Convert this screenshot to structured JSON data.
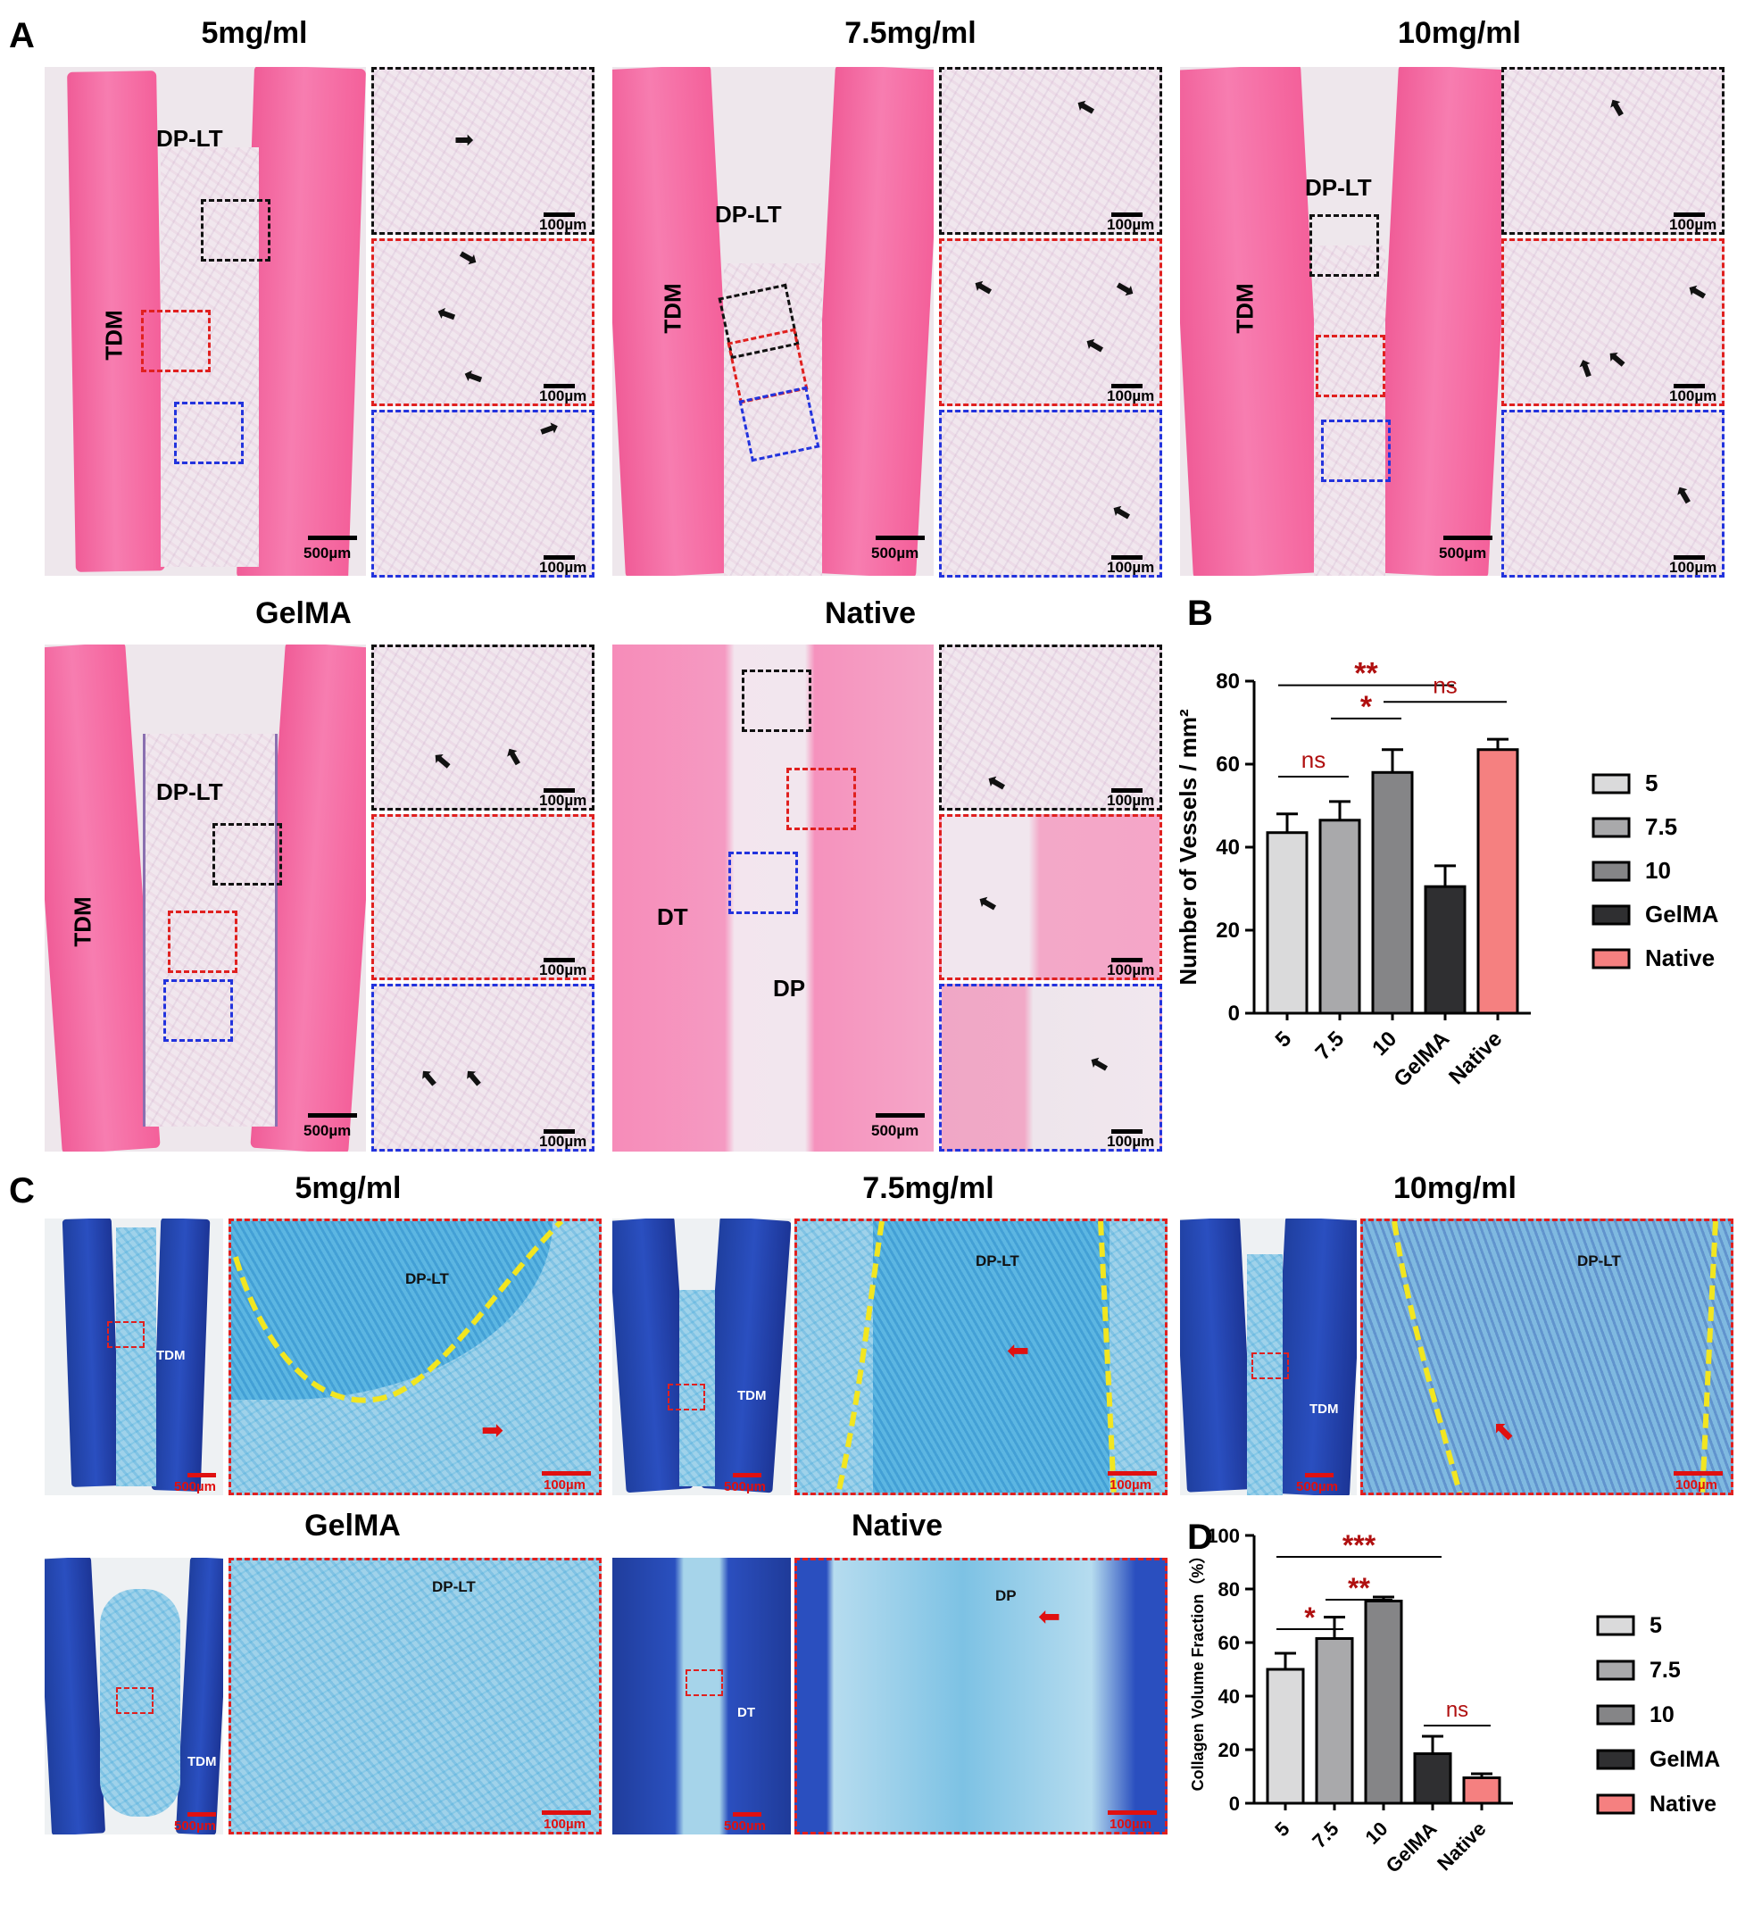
{
  "panel_a": {
    "letter": "A",
    "groups": [
      {
        "title": "5mg/ml",
        "main_labels": [
          "DP-LT",
          "TDM"
        ],
        "scale_main": "500µm",
        "scale_inset": "100µm"
      },
      {
        "title": "7.5mg/ml",
        "main_labels": [
          "DP-LT",
          "TDM"
        ],
        "scale_main": "500µm",
        "scale_inset": "100µm"
      },
      {
        "title": "10mg/ml",
        "main_labels": [
          "DP-LT",
          "TDM"
        ],
        "scale_main": "500µm",
        "scale_inset": "100µm"
      },
      {
        "title": "GelMA",
        "main_labels": [
          "DP-LT",
          "TDM"
        ],
        "scale_main": "500µm",
        "scale_inset": "100µm"
      },
      {
        "title": "Native",
        "main_labels": [
          "DT",
          "DP"
        ],
        "scale_main": "500µm",
        "scale_inset": "100µm"
      }
    ]
  },
  "panel_c": {
    "letter": "C",
    "groups": [
      {
        "title": "5mg/ml",
        "main_label": "TDM",
        "inset_label": "DP-LT",
        "scale_main": "500µm",
        "scale_inset": "100µm"
      },
      {
        "title": "7.5mg/ml",
        "main_label": "TDM",
        "inset_label": "DP-LT",
        "scale_main": "500µm",
        "scale_inset": "100µm"
      },
      {
        "title": "10mg/ml",
        "main_label": "TDM",
        "inset_label": "DP-LT",
        "scale_main": "500µm",
        "scale_inset": "100µm"
      },
      {
        "title": "GelMA",
        "main_label": "TDM",
        "inset_label": "DP-LT",
        "scale_main": "500µm",
        "scale_inset": "100µm"
      },
      {
        "title": "Native",
        "main_label": "DT",
        "inset_label": "DP",
        "scale_main": "500µm",
        "scale_inset": "100µm"
      }
    ]
  },
  "colors": {
    "bar_5": "#dadadb",
    "bar_7_5": "#a9a9ab",
    "bar_10": "#858587",
    "bar_gelma": "#2f2f31",
    "bar_native": "#f58080",
    "significance": "#b01010",
    "box_black": "#111111",
    "box_red": "#e0201f",
    "box_blue": "#2233dd"
  },
  "chart_data": [
    {
      "panel": "B",
      "type": "bar",
      "categories": [
        "5",
        "7.5",
        "10",
        "GelMA",
        "Native"
      ],
      "values": [
        43.5,
        46.5,
        58,
        30.5,
        63.5
      ],
      "errors": [
        4.5,
        4.5,
        5.5,
        5,
        2.5
      ],
      "ylabel": "Number of Vessels / mm²",
      "ylim": [
        0,
        80
      ],
      "yticks": [
        "0",
        "20",
        "40",
        "60",
        "80"
      ],
      "legend": [
        "5",
        "7.5",
        "10",
        "GelMA",
        "Native"
      ],
      "legend_position": "right",
      "significance": [
        {
          "label": "**",
          "from": "5",
          "to": "GelMA"
        },
        {
          "label": "ns",
          "from": "5",
          "to": "7.5"
        },
        {
          "label": "*",
          "from": "7.5",
          "to": "10"
        },
        {
          "label": "ns",
          "from": "10",
          "to": "Native"
        }
      ]
    },
    {
      "panel": "D",
      "type": "bar",
      "categories": [
        "5",
        "7.5",
        "10",
        "GelMA",
        "Native"
      ],
      "values": [
        50,
        61.5,
        75.5,
        18.5,
        9.5
      ],
      "errors": [
        6,
        8,
        1.5,
        6.5,
        1.5
      ],
      "ylabel": "Collagen Volume Fraction（%）",
      "ylim": [
        0,
        100
      ],
      "yticks": [
        "0",
        "20",
        "40",
        "60",
        "80",
        "100"
      ],
      "legend": [
        "5",
        "7.5",
        "10",
        "GelMA",
        "Native"
      ],
      "legend_position": "right",
      "significance": [
        {
          "label": "***",
          "from": "5",
          "to": "GelMA"
        },
        {
          "label": "*",
          "from": "5",
          "to": "7.5"
        },
        {
          "label": "**",
          "from": "7.5",
          "to": "10"
        },
        {
          "label": "ns",
          "from": "GelMA",
          "to": "Native"
        }
      ]
    }
  ]
}
